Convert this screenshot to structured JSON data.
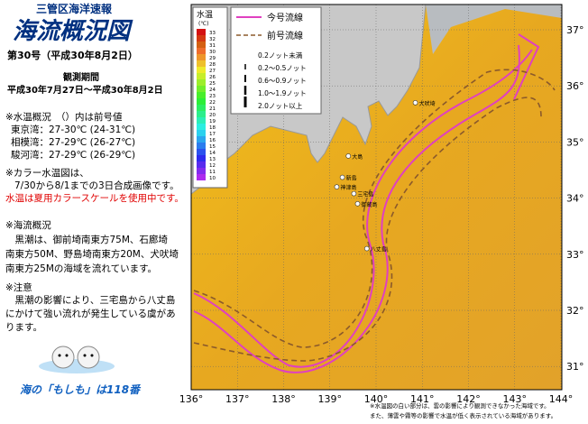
{
  "header": {
    "office": "三管区海洋速報",
    "title": "海流概況図",
    "issue": "第30号（平成30年8月2日）",
    "period_label": "観測期間",
    "period": "平成30年7月27日～平成30年8月2日"
  },
  "summary": {
    "temp_heading": "※水温概況　（）内は前号値",
    "temps": [
      "東京湾：27-30℃ (24-31℃)",
      "相模湾：27-29℃ (26-27℃)",
      "駿河湾：27-29℃ (26-29℃)"
    ],
    "color_note": [
      "※カラー水温図は、",
      "7/30から8/1までの3日合成画像です。"
    ],
    "scale_note": "水温は夏用カラースケールを使用中です。",
    "current_heading": "※海流概況",
    "current_text": [
      "　黒潮は、御前埼南東方75M、石廊埼",
      "南東方50M、野島埼南東方20M、犬吠埼",
      "南東方25Mの海域を流れています。"
    ],
    "caution_heading": "※注意",
    "caution_text": [
      "　黒潮の影響により、三宅島から八丈島",
      "にかけて強い流れが発生している虞があ",
      "ります。"
    ],
    "hotline": "海の「もしも」は118番"
  },
  "map": {
    "temp_legend": {
      "title": "水温",
      "unit": "(℃)",
      "labels": [
        33,
        32,
        31,
        30,
        29,
        28,
        27,
        26,
        25,
        24,
        23,
        22,
        21,
        20,
        19,
        18,
        17,
        16,
        15,
        14,
        13,
        12,
        11,
        10
      ]
    },
    "line_legend": [
      "今号流線",
      "前号流線"
    ],
    "speed_legend": [
      "0.2ノット未満",
      "0.2～0.5ノット",
      "0.6～0.9ノット",
      "1.0～1.9ノット",
      "2.0ノット以上"
    ],
    "places": [
      "大島",
      "新島",
      "神津島",
      "三宅島",
      "御蔵島",
      "八丈島",
      "犬吠埼"
    ],
    "lon_ticks": [
      {
        "value": 136,
        "label": "136°"
      },
      {
        "value": 137,
        "label": "137°"
      },
      {
        "value": 138,
        "label": "138°"
      },
      {
        "value": 139,
        "label": "139°"
      },
      {
        "value": 140,
        "label": "140°"
      },
      {
        "value": 141,
        "label": "141°"
      },
      {
        "value": 142,
        "label": "142°"
      },
      {
        "value": 143,
        "label": "143°"
      },
      {
        "value": 144,
        "label": "144°"
      }
    ],
    "lat_ticks": [
      {
        "value": 31,
        "label": "31°"
      },
      {
        "value": 32,
        "label": "32°"
      },
      {
        "value": 33,
        "label": "33°"
      },
      {
        "value": 34,
        "label": "34°"
      },
      {
        "value": 35,
        "label": "35°"
      },
      {
        "value": 36,
        "label": "36°"
      },
      {
        "value": 37,
        "label": "37°"
      }
    ],
    "notes": [
      "※水温図の白い部分は、雲の影響により観測できなかった海域です。",
      "また、薄雲や霧等の影響で水温が低く表示されている海域があります。"
    ]
  }
}
